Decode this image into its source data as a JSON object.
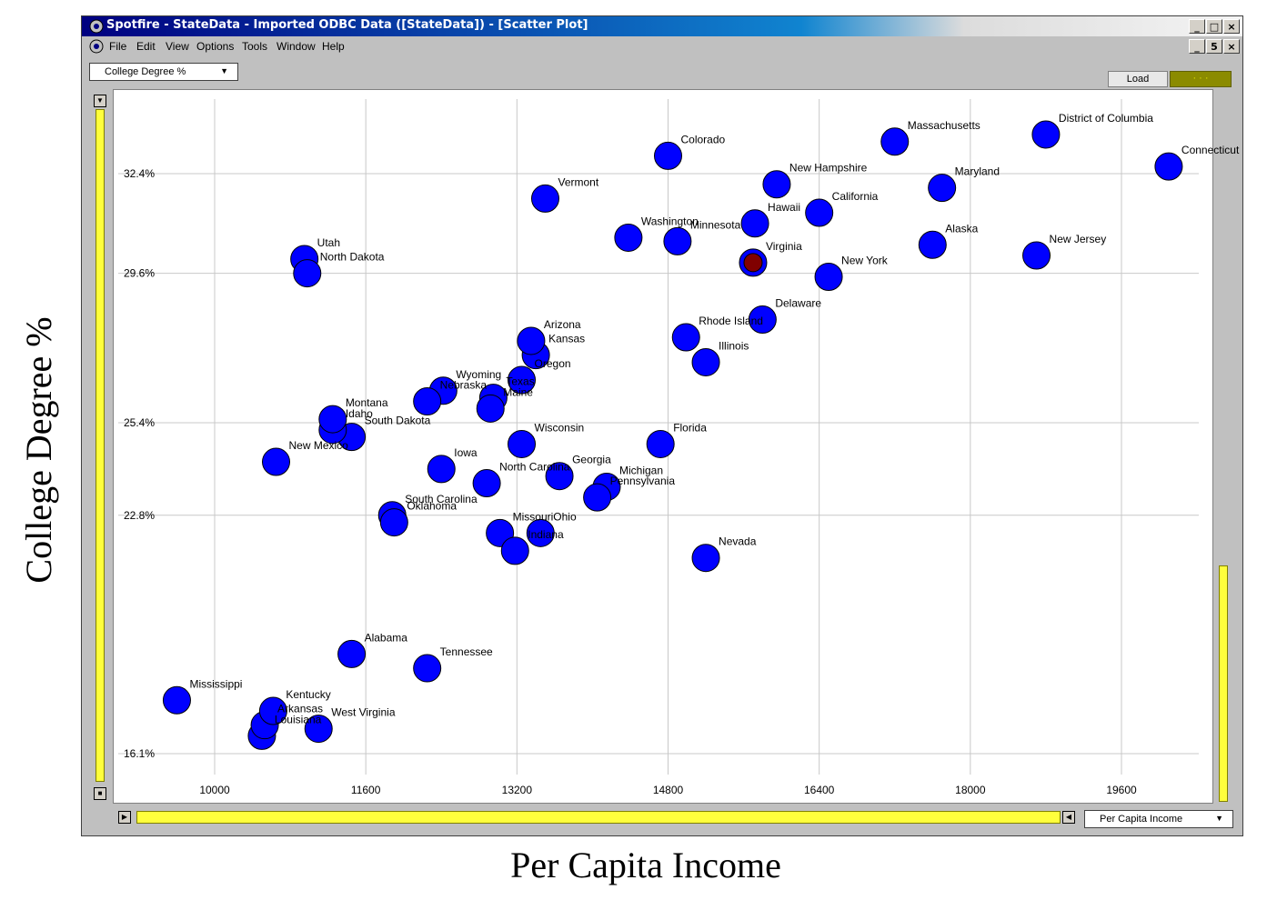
{
  "window": {
    "title": "Spotfire - StateData - Imported ODBC Data ([StateData]) - [Scatter Plot]",
    "controls": {
      "minimize": "_",
      "maximize": "□",
      "close": "×",
      "child_minimize": "_",
      "child_restore": "5",
      "child_close": "×"
    }
  },
  "menu": [
    "File",
    "Edit",
    "View",
    "Options",
    "Tools",
    "Window",
    "Help"
  ],
  "toolbar": {
    "y_axis_select": "College Degree %",
    "load_button": "Load",
    "more_button": "· · ·"
  },
  "x_axis_select": "Per Capita Income",
  "colors": {
    "point": "#0000ff",
    "highlight": "#800000",
    "slider": "#ffff3c"
  },
  "chart_data": {
    "type": "scatter",
    "xlabel": "Per Capita Income",
    "ylabel": "College Degree %",
    "xlim": [
      9200,
      20500
    ],
    "ylim": [
      15.7,
      33.6
    ],
    "x_ticks": [
      10000,
      11600,
      13200,
      14800,
      16400,
      18000,
      19600
    ],
    "x_tick_labels": [
      "10000",
      "11600",
      "13200",
      "14800",
      "16400",
      "18000",
      "19600"
    ],
    "y_ticks": [
      16.1,
      22.8,
      25.4,
      29.6,
      32.4
    ],
    "y_tick_labels": [
      "16.1%",
      "22.8%",
      "25.4%",
      "29.6%",
      "32.4%"
    ],
    "grid": true,
    "points": [
      {
        "label": "Mississippi",
        "x": 9600,
        "y": 17.6
      },
      {
        "label": "Louisiana",
        "x": 10500,
        "y": 16.6
      },
      {
        "label": "Arkansas",
        "x": 10530,
        "y": 16.9
      },
      {
        "label": "West Virginia",
        "x": 11100,
        "y": 16.8
      },
      {
        "label": "Kentucky",
        "x": 10620,
        "y": 17.3
      },
      {
        "label": "Alabama",
        "x": 11450,
        "y": 18.9
      },
      {
        "label": "Tennessee",
        "x": 12250,
        "y": 18.5
      },
      {
        "label": "South Carolina",
        "x": 11880,
        "y": 22.8
      },
      {
        "label": "Oklahoma",
        "x": 11900,
        "y": 22.6
      },
      {
        "label": "New Mexico",
        "x": 10650,
        "y": 24.3
      },
      {
        "label": "South Dakota",
        "x": 11450,
        "y": 25.0
      },
      {
        "label": "Idaho",
        "x": 11250,
        "y": 25.2
      },
      {
        "label": "Montana",
        "x": 11250,
        "y": 25.5
      },
      {
        "label": "Utah",
        "x": 10950,
        "y": 30.0
      },
      {
        "label": "North Dakota",
        "x": 10980,
        "y": 29.6
      },
      {
        "label": "Wyoming",
        "x": 12420,
        "y": 26.3
      },
      {
        "label": "Nebraska",
        "x": 12250,
        "y": 26.0
      },
      {
        "label": "Iowa",
        "x": 12400,
        "y": 24.1
      },
      {
        "label": "North Carolina",
        "x": 12880,
        "y": 23.7
      },
      {
        "label": "Texas",
        "x": 12950,
        "y": 26.1
      },
      {
        "label": "Maine",
        "x": 12920,
        "y": 25.8
      },
      {
        "label": "Oregon",
        "x": 13250,
        "y": 26.6
      },
      {
        "label": "Kansas",
        "x": 13400,
        "y": 27.3
      },
      {
        "label": "Arizona",
        "x": 13350,
        "y": 27.7
      },
      {
        "label": "Wisconsin",
        "x": 13250,
        "y": 24.8
      },
      {
        "label": "Vermont",
        "x": 13500,
        "y": 31.7
      },
      {
        "label": "Georgia",
        "x": 13650,
        "y": 23.9
      },
      {
        "label": "Missouri",
        "x": 13020,
        "y": 22.3
      },
      {
        "label": "Ohio",
        "x": 13450,
        "y": 22.3
      },
      {
        "label": "Indiana",
        "x": 13180,
        "y": 21.8
      },
      {
        "label": "Michigan",
        "x": 14150,
        "y": 23.6
      },
      {
        "label": "Pennsylvania",
        "x": 14050,
        "y": 23.3
      },
      {
        "label": "Minnesota",
        "x": 14900,
        "y": 30.5
      },
      {
        "label": "Washington",
        "x": 14380,
        "y": 30.6
      },
      {
        "label": "Colorado",
        "x": 14800,
        "y": 32.9
      },
      {
        "label": "Florida",
        "x": 14720,
        "y": 24.8
      },
      {
        "label": "Rhode Island",
        "x": 14990,
        "y": 27.8
      },
      {
        "label": "Illinois",
        "x": 15200,
        "y": 27.1
      },
      {
        "label": "Nevada",
        "x": 15200,
        "y": 21.6
      },
      {
        "label": "Virginia",
        "x": 15700,
        "y": 29.9
      },
      {
        "label": "Delaware",
        "x": 15800,
        "y": 28.3
      },
      {
        "label": "Hawaii",
        "x": 15720,
        "y": 31.0
      },
      {
        "label": "New Hampshire",
        "x": 15950,
        "y": 32.1
      },
      {
        "label": "California",
        "x": 16400,
        "y": 31.3
      },
      {
        "label": "New York",
        "x": 16500,
        "y": 29.5
      },
      {
        "label": "Massachusetts",
        "x": 17200,
        "y": 33.3
      },
      {
        "label": "Maryland",
        "x": 17700,
        "y": 32.0
      },
      {
        "label": "Alaska",
        "x": 17600,
        "y": 30.4
      },
      {
        "label": "New Jersey",
        "x": 18700,
        "y": 30.1
      },
      {
        "label": "District of Columbia",
        "x": 18800,
        "y": 33.5
      },
      {
        "label": "Connecticut",
        "x": 20100,
        "y": 32.6
      }
    ],
    "highlighted": "Virginia"
  }
}
